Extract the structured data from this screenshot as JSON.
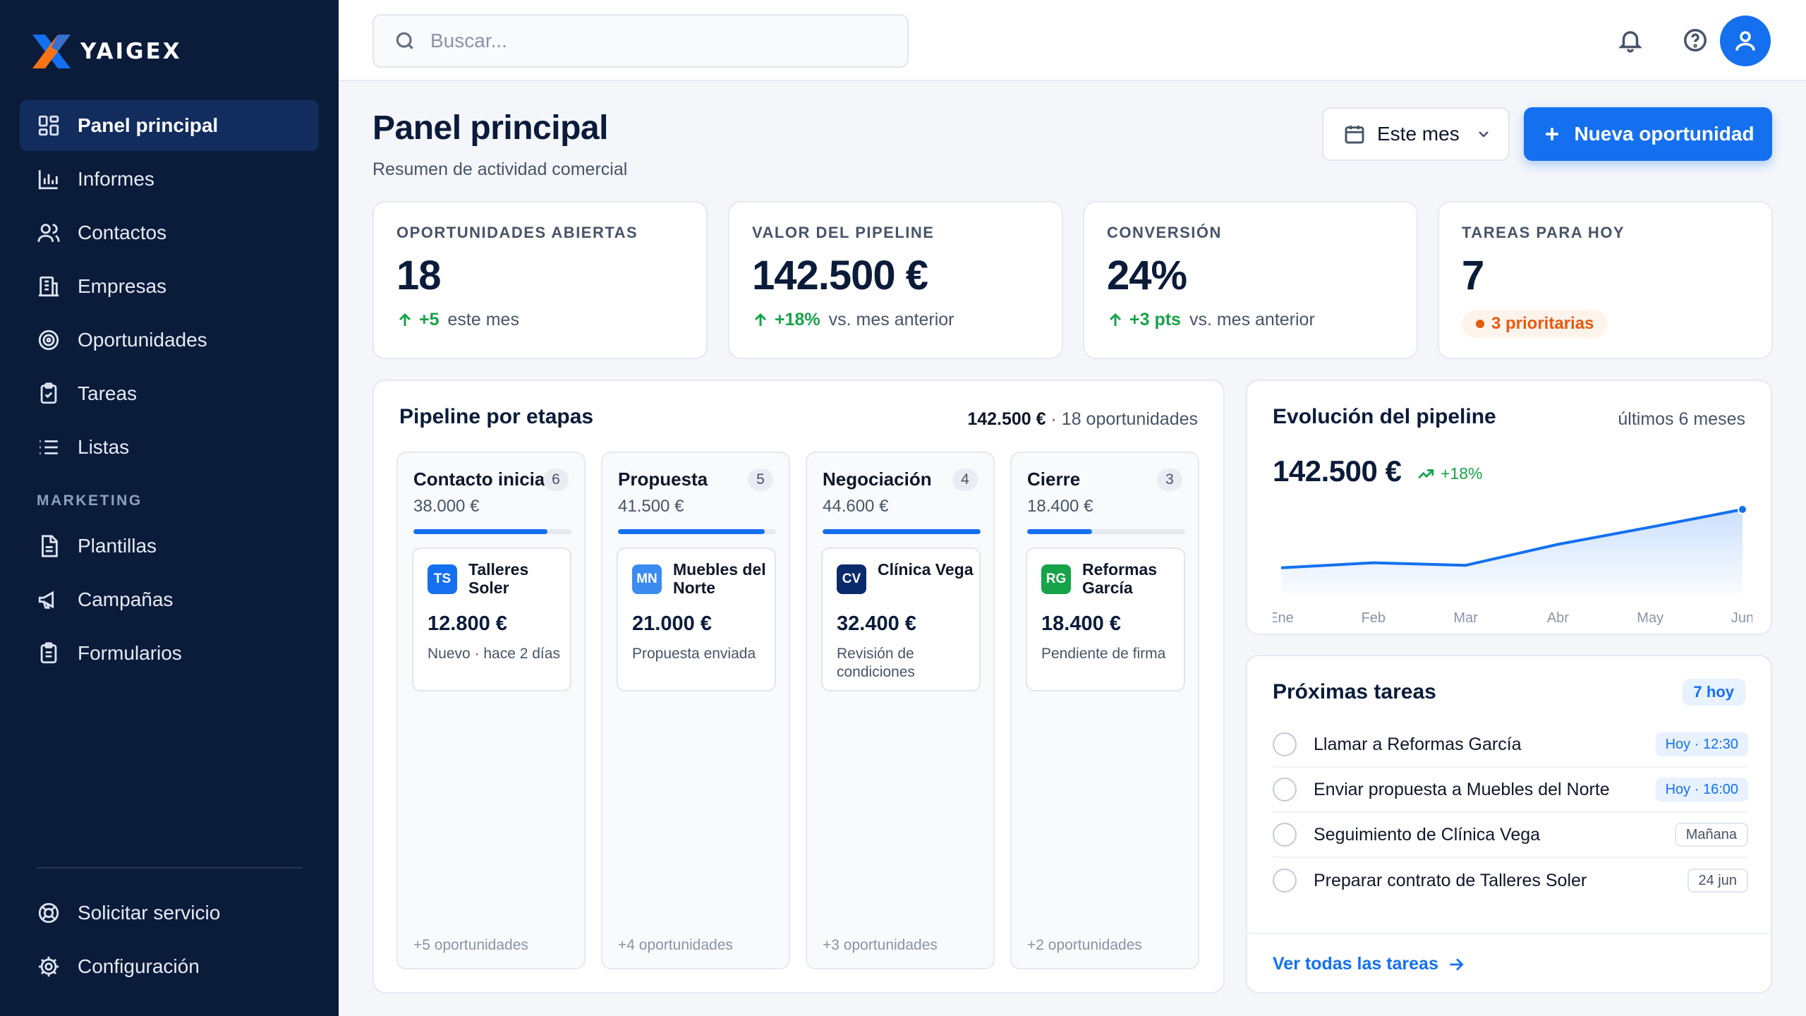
{
  "app": {
    "name": "YAIGEX"
  },
  "sidebar": {
    "items": [
      {
        "label": "Panel principal",
        "icon": "grid-icon",
        "active": true
      },
      {
        "label": "Informes",
        "icon": "bar-chart-icon"
      },
      {
        "label": "Contactos",
        "icon": "users-icon"
      },
      {
        "label": "Empresas",
        "icon": "building-icon"
      },
      {
        "label": "Oportunidades",
        "icon": "target-icon"
      },
      {
        "label": "Tareas",
        "icon": "clipboard-check-icon"
      },
      {
        "label": "Listas",
        "icon": "list-icon"
      }
    ],
    "section_marketing": "MARKETING",
    "marketing_items": [
      {
        "label": "Plantillas",
        "icon": "document-icon"
      },
      {
        "label": "Campañas",
        "icon": "megaphone-icon"
      },
      {
        "label": "Formularios",
        "icon": "clipboard-list-icon"
      }
    ],
    "bottom_items": [
      {
        "label": "Solicitar servicio",
        "icon": "lifebuoy-icon"
      },
      {
        "label": "Configuración",
        "icon": "gear-icon"
      }
    ]
  },
  "topbar": {
    "search_placeholder": "Buscar..."
  },
  "header": {
    "title": "Panel principal",
    "subtitle": "Resumen de actividad comercial",
    "period": "Este mes",
    "new_button": "Nueva oportunidad"
  },
  "kpis": [
    {
      "label": "OPORTUNIDADES ABIERTAS",
      "value": "18",
      "delta": "+5",
      "note": "este mes"
    },
    {
      "label": "VALOR DEL PIPELINE",
      "value": "142.500 €",
      "delta": "+18%",
      "note": "vs. mes anterior"
    },
    {
      "label": "CONVERSIÓN",
      "value": "24%",
      "delta": "+3 pts",
      "note": "vs. mes anterior"
    },
    {
      "label": "TAREAS PARA HOY",
      "value": "7",
      "badge": "3 prioritarias"
    }
  ],
  "pipeline": {
    "title": "Pipeline por etapas",
    "total": "142.500 €",
    "count": "· 18 oportunidades",
    "stages": [
      {
        "name": "Contacto inicial",
        "count": "6",
        "amount": "38.000 €",
        "progress": 0.85,
        "deal": {
          "initials": "TS",
          "color": "#1570ef",
          "name": "Talleres Soler",
          "value": "12.800 €",
          "note": "Nuevo · hace 2 días"
        },
        "more": "+5 oportunidades"
      },
      {
        "name": "Propuesta",
        "count": "5",
        "amount": "41.500 €",
        "progress": 0.93,
        "deal": {
          "initials": "MN",
          "color": "#3b8bf0",
          "name": "Muebles del Norte",
          "value": "21.000 €",
          "note": "Propuesta enviada"
        },
        "more": "+4 oportunidades"
      },
      {
        "name": "Negociación",
        "count": "4",
        "amount": "44.600 €",
        "progress": 1.0,
        "deal": {
          "initials": "CV",
          "color": "#0b2a6b",
          "name": "Clínica Vega",
          "value": "32.400 €",
          "note": "Revisión de condiciones"
        },
        "more": "+3 oportunidades"
      },
      {
        "name": "Cierre",
        "count": "3",
        "amount": "18.400 €",
        "progress": 0.41,
        "deal": {
          "initials": "RG",
          "color": "#16a34a",
          "name": "Reformas García",
          "value": "18.400 €",
          "note": "Pendiente de firma"
        },
        "more": "+2 oportunidades"
      }
    ]
  },
  "evolution": {
    "title": "Evolución del pipeline",
    "range": "últimos 6 meses",
    "value": "142.500 €",
    "delta": "+18%"
  },
  "chart_data": {
    "type": "area",
    "categories": [
      "Ene",
      "Feb",
      "Mar",
      "Abr",
      "May",
      "Jun"
    ],
    "values": [
      0.08,
      0.16,
      0.12,
      0.45,
      0.72,
      1.0
    ],
    "color": "#1570ef"
  },
  "tasks": {
    "title": "Próximas tareas",
    "badge": "7 hoy",
    "items": [
      {
        "label": "Llamar a Reformas García",
        "when": "Hoy · 12:30",
        "style": "blue"
      },
      {
        "label": "Enviar propuesta a Muebles del Norte",
        "when": "Hoy · 16:00",
        "style": "blue"
      },
      {
        "label": "Seguimiento de Clínica Vega",
        "when": "Mañana",
        "style": "gray"
      },
      {
        "label": "Preparar contrato de Talleres Soler",
        "when": "24 jun",
        "style": "gray"
      }
    ],
    "link": "Ver todas las tareas"
  }
}
